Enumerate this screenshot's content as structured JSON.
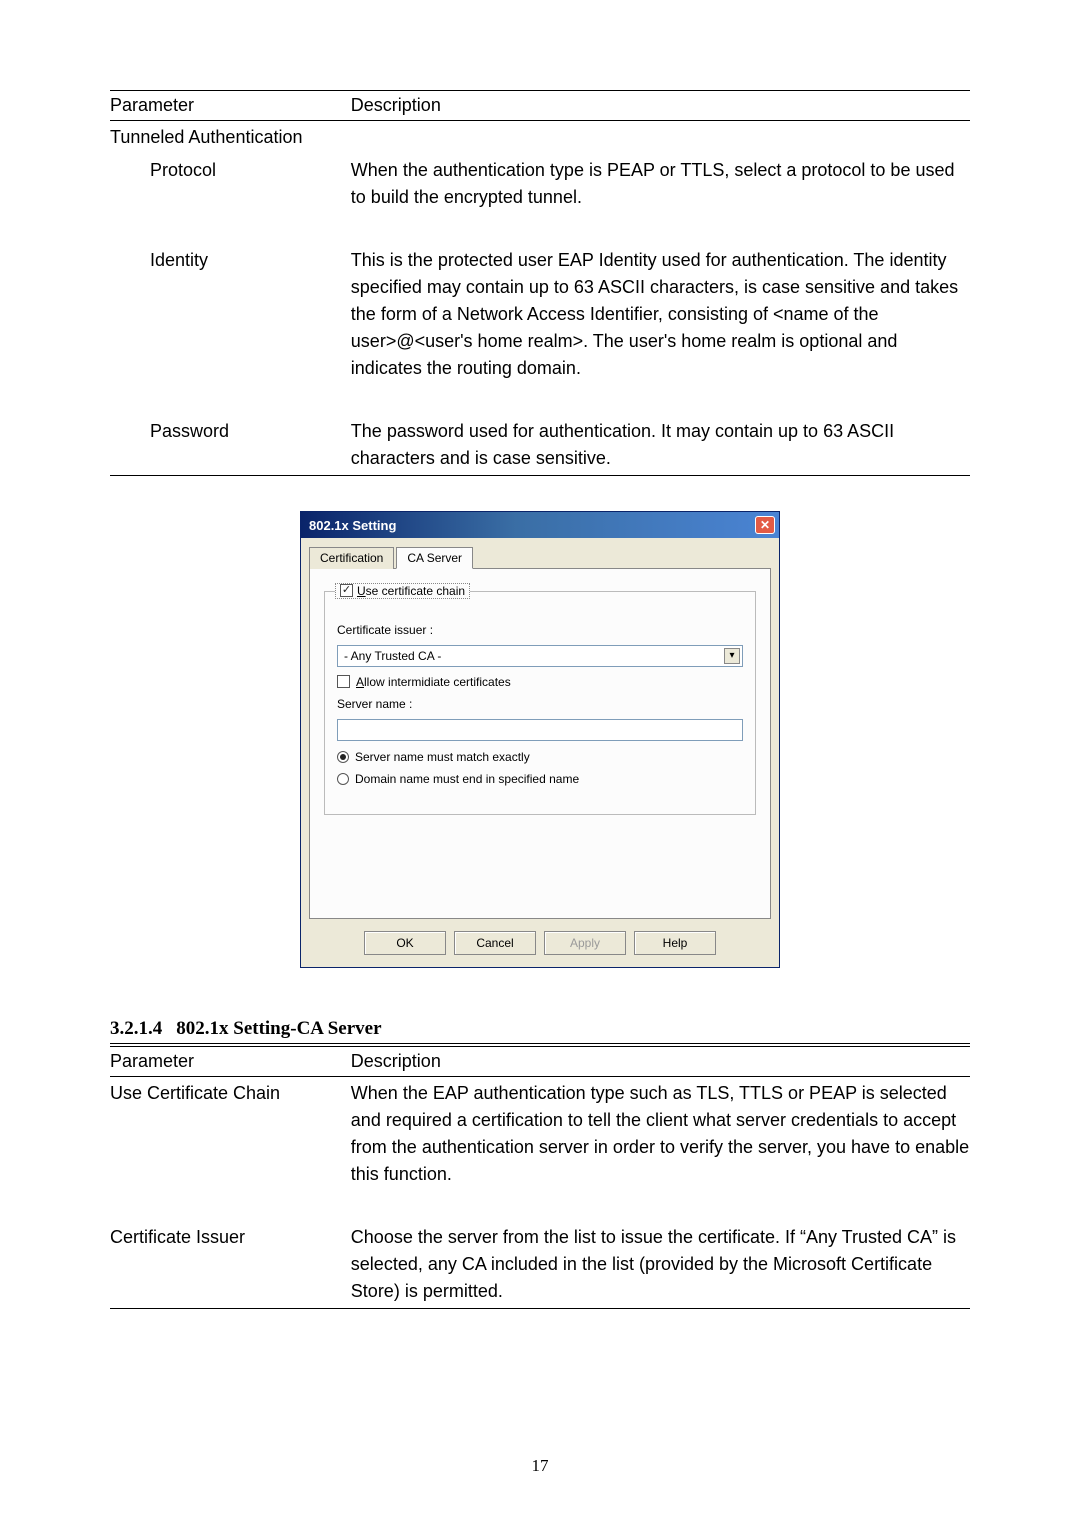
{
  "table1": {
    "header": {
      "c1": "Parameter",
      "c2": "Description"
    },
    "rows": [
      {
        "c1": "Tunneled Authentication",
        "c2": "",
        "indent": false
      },
      {
        "c1": "Protocol",
        "c2": "When the authentication type is PEAP or TTLS, select a protocol to be used to build the encrypted tunnel.",
        "indent": true
      },
      {
        "c1": "Identity",
        "c2": "This is the protected user EAP Identity used for authentication. The identity specified may contain up to 63 ASCII characters, is case sensitive and takes the form of a Network Access Identifier, consisting of <name of the user>@<user's home realm>. The user's home realm is optional and indicates the routing domain.",
        "indent": true
      },
      {
        "c1": "Password",
        "c2": "The password used for authentication. It may contain up to 63 ASCII characters and is case sensitive.",
        "indent": true
      }
    ]
  },
  "dialog": {
    "title": "802.1x Setting",
    "tabs": {
      "cert": "Certification",
      "ca": "CA Server"
    },
    "use_chain_label": "Use certificate chain",
    "use_chain_underline": "U",
    "cert_issuer_label": "Certificate issuer :",
    "issuer_value": "- Any Trusted CA -",
    "allow_inter_label": "llow intermidiate certificates",
    "allow_inter_underline": "A",
    "server_name_label": "Server name :",
    "radio_exact": "Server name must match exactly",
    "radio_domain": "Domain name must end in specified name",
    "buttons": {
      "ok": "OK",
      "cancel": "Cancel",
      "apply": "Apply",
      "help": "Help"
    }
  },
  "section": {
    "num": "3.2.1.4",
    "title": "802.1x Setting-CA Server"
  },
  "table2": {
    "header": {
      "c1": "Parameter",
      "c2": "Description"
    },
    "rows": [
      {
        "c1": "Use Certificate Chain",
        "c2": "When the EAP authentication type such as TLS, TTLS or PEAP is selected and required a certification to tell the client what server credentials to accept from the authentication server in order to verify the server, you have to enable this function."
      },
      {
        "c1": "Certificate Issuer",
        "c2": "Choose the server from the list to issue the certificate. If “Any Trusted CA” is selected, any CA included in the list (provided by the Microsoft Certificate Store) is permitted."
      }
    ]
  },
  "page_number": "17",
  "colors": {
    "titlebar_start": "#0a246a",
    "titlebar_end": "#4a84d4",
    "dialog_bg": "#ece9d8",
    "close_btn": "#e35b45",
    "input_border": "#7f9db9"
  }
}
